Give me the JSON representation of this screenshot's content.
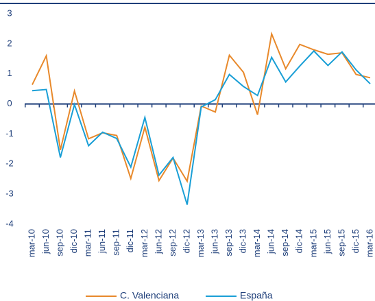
{
  "chart_data": {
    "type": "line",
    "categories": [
      "mar-10",
      "jun-10",
      "sep-10",
      "dic-10",
      "mar-11",
      "jun-11",
      "sep-11",
      "dic-11",
      "mar-12",
      "jun-12",
      "sep-12",
      "dic-12",
      "mar-13",
      "jun-13",
      "sep-13",
      "dic-13",
      "mar-14",
      "jun-14",
      "sep-14",
      "dic-14",
      "mar-15",
      "jun-15",
      "sep-15",
      "dic-15",
      "mar-16"
    ],
    "series": [
      {
        "name": "C. Valenciana",
        "color": "#e8892b",
        "values": [
          0.64,
          1.6,
          -1.53,
          0.43,
          -1.16,
          -0.96,
          -1.05,
          -2.48,
          -0.77,
          -2.55,
          -1.8,
          -2.57,
          -0.07,
          -0.27,
          1.62,
          1.05,
          -0.36,
          2.33,
          1.17,
          1.98,
          1.8,
          1.65,
          1.7,
          0.98,
          0.87
        ]
      },
      {
        "name": "España",
        "color": "#1a9fd6",
        "values": [
          0.44,
          0.48,
          -1.78,
          -0.02,
          -1.39,
          -0.94,
          -1.15,
          -2.1,
          -0.45,
          -2.37,
          -1.78,
          -3.35,
          -0.1,
          0.14,
          0.98,
          0.58,
          0.28,
          1.55,
          0.73,
          1.26,
          1.76,
          1.28,
          1.73,
          1.13,
          0.67
        ]
      }
    ],
    "ylim": [
      -4,
      3
    ],
    "yticks": [
      3,
      2,
      1,
      0,
      -1,
      -2,
      -3,
      -4
    ],
    "grid": false,
    "legend": "bottom"
  }
}
